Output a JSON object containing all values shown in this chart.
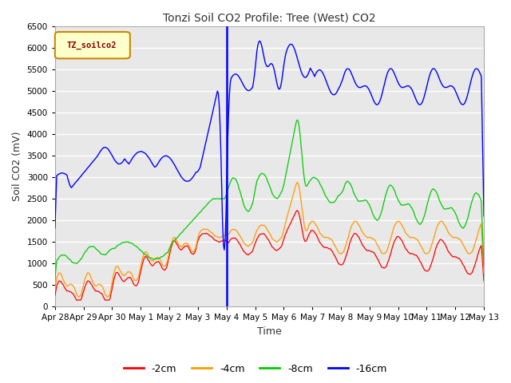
{
  "title": "Tonzi Soil CO2 Profile: Tree (West) CO2",
  "ylabel": "Soil CO2 (mV)",
  "xlabel": "Time",
  "legend_label": "TZ_soilco2",
  "ylim": [
    0,
    6500
  ],
  "xlim": [
    0,
    360
  ],
  "line_colors": {
    "-2cm": "#ff0000",
    "-4cm": "#ff9900",
    "-8cm": "#00cc00",
    "-16cm": "#0000ff"
  },
  "legend_entries": [
    "-2cm",
    "-4cm",
    "-8cm",
    "-16cm"
  ],
  "vline_x": 144,
  "plot_bg": "#e8e8e8",
  "fig_bg": "#ffffff",
  "grid_color": "#ffffff",
  "title_fontsize": 10,
  "tick_fontsize": 7.5,
  "label_fontsize": 9,
  "yticks": [
    0,
    500,
    1000,
    1500,
    2000,
    2500,
    3000,
    3500,
    4000,
    4500,
    5000,
    5500,
    6000,
    6500
  ],
  "tick_positions": [
    0,
    24,
    48,
    72,
    96,
    120,
    144,
    168,
    192,
    216,
    240,
    264,
    288,
    312,
    336,
    360
  ],
  "tick_labels": [
    "Apr 28",
    "Apr 29",
    "Apr 30",
    "May 1",
    "May 2",
    "May 3",
    "May 4",
    "May 5",
    "May 6",
    "May 7",
    "May 8",
    "May 9",
    "May 10",
    "May 11",
    "May 12",
    "May 13"
  ]
}
